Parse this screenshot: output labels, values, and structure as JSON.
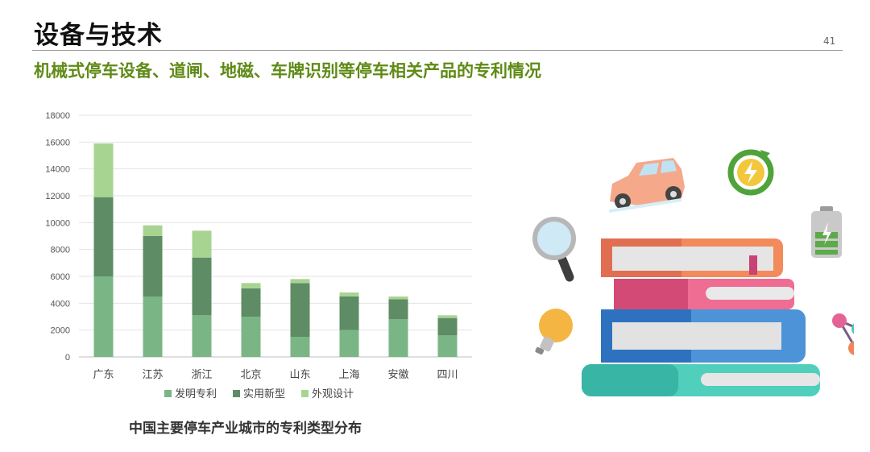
{
  "page": {
    "title": "设备与技术",
    "page_number": "41",
    "subtitle": "机械式停车设备、道闸、地磁、车牌识别等停车相关产品的专利情况"
  },
  "caption": "中国主要停车产业城市的专利类型分布",
  "colors": {
    "title_green": "#5f8a16",
    "series": [
      "#7ab685",
      "#5e8c64",
      "#a8d492"
    ]
  },
  "icons": [
    "car-icon",
    "energy-cycle-icon",
    "battery-icon",
    "magnifier-icon",
    "lightbulb-icon",
    "molecule-icon",
    "books-stack-icon"
  ],
  "chart_data": {
    "type": "bar",
    "stacked": true,
    "categories": [
      "广东",
      "江苏",
      "浙江",
      "北京",
      "山东",
      "上海",
      "安徽",
      "四川"
    ],
    "series": [
      {
        "name": "发明专利",
        "values": [
          6000,
          4500,
          3100,
          3000,
          1500,
          2000,
          2800,
          1600
        ]
      },
      {
        "name": "实用新型",
        "values": [
          5900,
          4500,
          4300,
          2100,
          4000,
          2500,
          1500,
          1300
        ]
      },
      {
        "name": "外观设计",
        "values": [
          4000,
          800,
          2000,
          400,
          300,
          300,
          200,
          200
        ]
      }
    ],
    "ylim": [
      0,
      18000
    ],
    "yticks": [
      0,
      2000,
      4000,
      6000,
      8000,
      10000,
      12000,
      14000,
      16000,
      18000
    ],
    "grid": true,
    "legend_position": "bottom"
  }
}
